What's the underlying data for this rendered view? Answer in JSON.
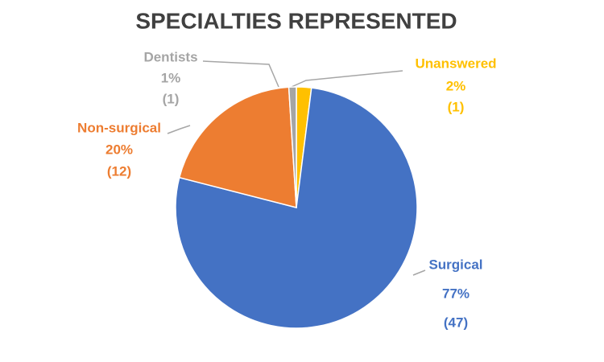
{
  "chart_data": {
    "type": "pie",
    "title": "SPECIALTIES REPRESENTED",
    "categories": [
      "Unanswered",
      "Surgical",
      "Non-surgical",
      "Dentists"
    ],
    "values": [
      2,
      77,
      20,
      1
    ],
    "value_labels": [
      "2%",
      "77%",
      "20%",
      "1%"
    ],
    "counts": [
      1,
      47,
      12,
      1
    ],
    "count_labels": [
      "(1)",
      "(47)",
      "(12)",
      "(1)"
    ],
    "colors": [
      "#ffc000",
      "#4472c4",
      "#ed7d31",
      "#a5a5a5"
    ]
  }
}
